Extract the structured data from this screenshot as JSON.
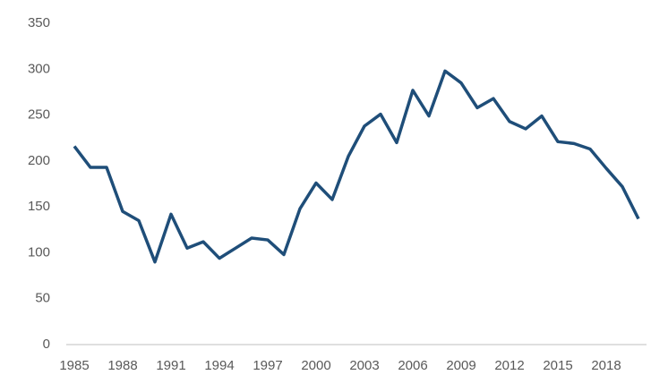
{
  "chart_data": {
    "type": "line",
    "categories": [
      "1985",
      null,
      null,
      "1988",
      null,
      null,
      "1991",
      null,
      null,
      "1994",
      null,
      null,
      "1997",
      null,
      null,
      "2000",
      null,
      null,
      "2003",
      null,
      null,
      "2006",
      null,
      null,
      "2009",
      null,
      null,
      "2012",
      null,
      null,
      "2015",
      null,
      null,
      "2018",
      null,
      null
    ],
    "series": [
      {
        "color": "#1f4e79",
        "values": [
          216,
          193,
          193,
          145,
          135,
          90,
          142,
          105,
          112,
          94,
          105,
          116,
          114,
          98,
          148,
          176,
          158,
          205,
          238,
          251,
          220,
          277,
          249,
          298,
          285,
          258,
          268,
          243,
          235,
          249,
          221,
          219,
          213,
          192,
          172,
          137
        ]
      }
    ],
    "ylim": [
      0,
      350
    ],
    "yticks": [
      0,
      50,
      100,
      150,
      200,
      250,
      300,
      350
    ],
    "grid": false
  }
}
